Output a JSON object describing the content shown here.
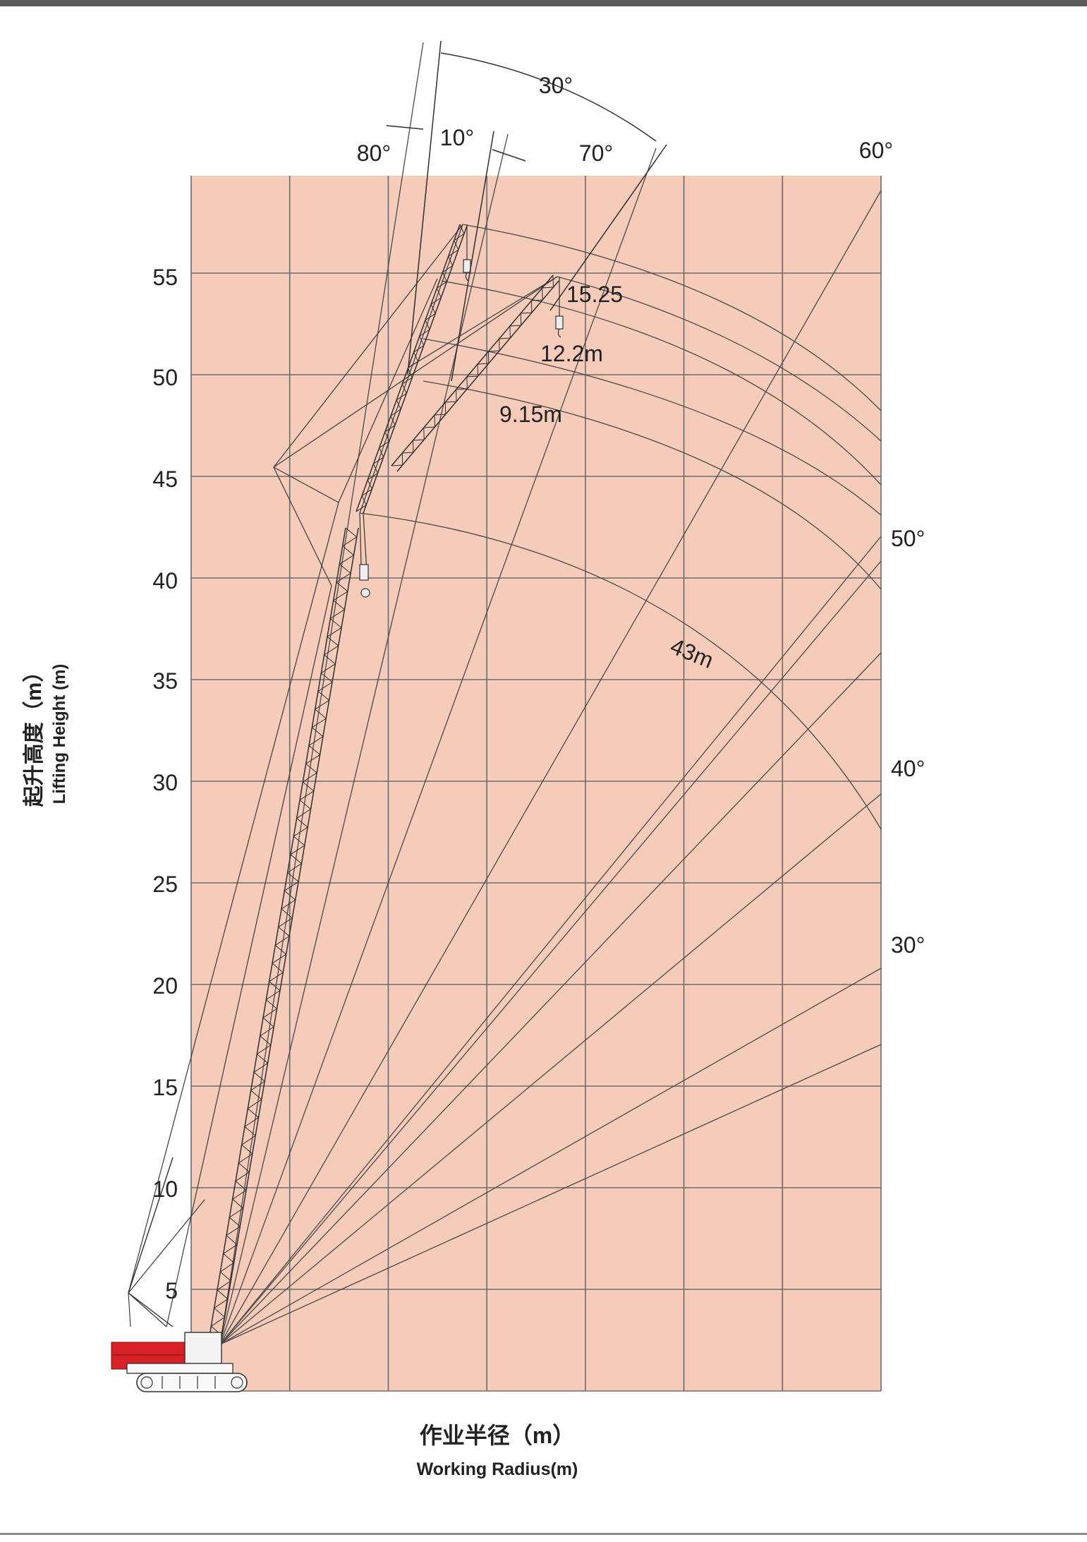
{
  "y_ticks": [
    "5",
    "10",
    "15",
    "20",
    "25",
    "30",
    "35",
    "40",
    "45",
    "50",
    "55"
  ],
  "y_axis_label_cn": "起升高度（m）",
  "y_axis_label_en": "Lifting Height (m)",
  "x_axis_label_cn": "作业半径（m）",
  "x_axis_label_en": "Working Radius(m)",
  "boom_angle_labels": [
    "80°",
    "70°",
    "60°",
    "50°",
    "40°",
    "30°"
  ],
  "jib_offset_labels": {
    "offset_30": "30°",
    "offset_10": "10°"
  },
  "jib_length_labels": [
    "15.25",
    "12.2m",
    "9.15m"
  ],
  "boom_length_label": "43m",
  "colors": {
    "grid_background": "#f5cbb9",
    "grid_line": "#6b6b6b",
    "structure_line": "#333333",
    "counterweight": "#d92128",
    "border": "#555555"
  }
}
